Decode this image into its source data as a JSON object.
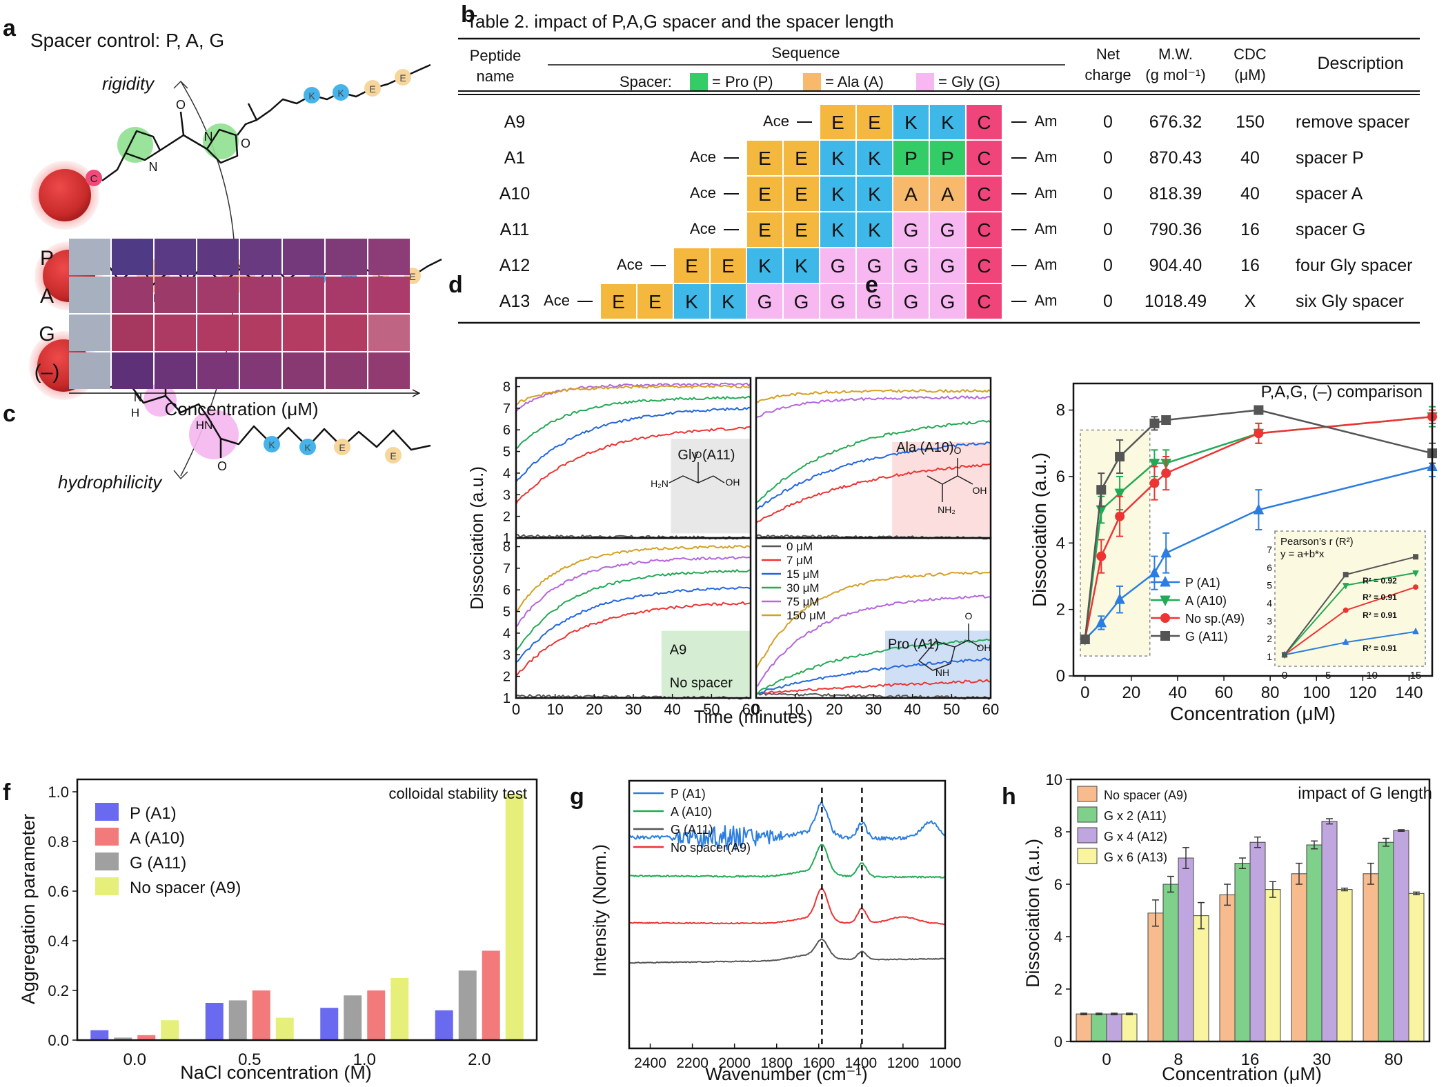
{
  "figure": {
    "panel_labels": {
      "a": "a",
      "b": "b",
      "c": "c",
      "d": "d",
      "e": "e",
      "f": "f",
      "g": "g",
      "h": "h"
    },
    "panel_a": {
      "title": "Spacer control: P, A, G",
      "arrow_top_label": "rigidity",
      "arrow_bottom_label": "hydrophilicity",
      "gold_label": "C",
      "lysine_label": "K",
      "glutamate_label": "E",
      "nh_label": "N",
      "h_label": "H",
      "o_label": "O",
      "colors": {
        "particle": "#d83a3a",
        "pro": "#8fe08f",
        "ala": "#f6c79a",
        "gly": "#f5b6f0",
        "lys": "#46b4ea",
        "glu": "#f6d69a"
      }
    },
    "panel_b": {
      "title": "Table 2. impact of P,A,G spacer and the spacer length",
      "headers": {
        "peptide": [
          "Peptide",
          "name"
        ],
        "sequence": "Sequence",
        "net": [
          "Net",
          "charge"
        ],
        "mw": [
          "M.W.",
          "(g mol⁻¹)"
        ],
        "cdc": [
          "CDC",
          "(μM)"
        ],
        "description": "Description"
      },
      "spacer_legend": {
        "label": "Spacer:",
        "items": [
          {
            "text": "= Pro (P)",
            "color": "#33cc66"
          },
          {
            "text": "= Ala (A)",
            "color": "#f7b96b"
          },
          {
            "text": "= Gly (G)",
            "color": "#f7b8f2"
          }
        ]
      },
      "ace": "Ace",
      "am": "Am",
      "residue_colors": {
        "E": "#f5b83f",
        "K": "#3db8e8",
        "P": "#33cc66",
        "A": "#f7b96b",
        "G": "#f7b8f2",
        "C": "#f0457a"
      },
      "rows": [
        {
          "name": "A9",
          "sequence": [
            "E",
            "E",
            "K",
            "K",
            "C"
          ],
          "net": "0",
          "mw": "676.32",
          "cdc": "150",
          "description": "remove spacer"
        },
        {
          "name": "A1",
          "sequence": [
            "E",
            "E",
            "K",
            "K",
            "P",
            "P",
            "C"
          ],
          "net": "0",
          "mw": "870.43",
          "cdc": "40",
          "description": "spacer P"
        },
        {
          "name": "A10",
          "sequence": [
            "E",
            "E",
            "K",
            "K",
            "A",
            "A",
            "C"
          ],
          "net": "0",
          "mw": "818.39",
          "cdc": "40",
          "description": "spacer A"
        },
        {
          "name": "A11",
          "sequence": [
            "E",
            "E",
            "K",
            "K",
            "G",
            "G",
            "C"
          ],
          "net": "0",
          "mw": "790.36",
          "cdc": "16",
          "description": "spacer G"
        },
        {
          "name": "A12",
          "sequence": [
            "E",
            "E",
            "K",
            "K",
            "G",
            "G",
            "G",
            "G",
            "C"
          ],
          "net": "0",
          "mw": "904.40",
          "cdc": "16",
          "description": "four Gly spacer"
        },
        {
          "name": "A13",
          "sequence": [
            "E",
            "E",
            "K",
            "K",
            "G",
            "G",
            "G",
            "G",
            "G",
            "G",
            "C"
          ],
          "net": "0",
          "mw": "1018.49",
          "cdc": "X",
          "description": "six Gly spacer"
        }
      ]
    },
    "panel_c": {
      "row_labels": [
        "P",
        "A",
        "G",
        "(–)"
      ],
      "xlabel": "Concentration (μM)",
      "well_colors": [
        [
          "#a9b1c0",
          "#4f3a86",
          "#5a3a85",
          "#5e3982",
          "#6a3a80",
          "#73397a",
          "#7f3a78",
          "#8c3c76"
        ],
        [
          "#a7b0bf",
          "#9a3a6c",
          "#9c3a6a",
          "#a23a6a",
          "#a43a6a",
          "#a53a6a",
          "#a83a6a",
          "#ab3b6a"
        ],
        [
          "#a8b0bf",
          "#a6375e",
          "#ac3a62",
          "#b03a62",
          "#b23b62",
          "#b43c62",
          "#b23c62",
          "#c06484"
        ],
        [
          "#a5adbd",
          "#5d3078",
          "#6b3478",
          "#7a3676",
          "#813874",
          "#883972",
          "#8d3a70",
          "#913b70"
        ]
      ]
    },
    "chart_data": [
      {
        "id": "d",
        "type": "line",
        "ylabel": "Dissociation (a.u.)",
        "xlabel": "Time (minutes)",
        "xlim": [
          0,
          60
        ],
        "ylim": [
          1,
          8.4
        ],
        "x_ticks": [
          0,
          10,
          20,
          30,
          40,
          50,
          60
        ],
        "y_ticks": [
          1,
          2,
          3,
          4,
          5,
          6,
          7,
          8
        ],
        "legend": [
          "0 μM",
          "7 μM",
          "15 μM",
          "30 μM",
          "75 μM",
          "150 μM"
        ],
        "series_colors": [
          "#555555",
          "#ee3333",
          "#2266dd",
          "#22aa55",
          "#b466dd",
          "#d4a020"
        ],
        "subplots": [
          {
            "label": "Gly (A11)",
            "start": [
              1.1,
              2.6,
              3.6,
              5.1,
              6.9,
              7.2
            ],
            "end": [
              1.0,
              6.1,
              7.0,
              7.5,
              8.1,
              8.0
            ],
            "k": [
              0,
              0.055,
              0.06,
              0.08,
              0.12,
              0.12
            ]
          },
          {
            "label": "Ala (A10)",
            "start": [
              1.1,
              1.7,
              2.3,
              2.6,
              6.6,
              7.3
            ],
            "end": [
              1.0,
              4.4,
              5.4,
              6.4,
              7.5,
              7.8
            ],
            "k": [
              0,
              0.035,
              0.04,
              0.045,
              0.09,
              0.12
            ]
          },
          {
            "label": "A9",
            "label2": "No spacer",
            "start": [
              1.1,
              2.0,
              2.6,
              3.2,
              4.3,
              5.0
            ],
            "end": [
              1.0,
              5.4,
              6.1,
              6.9,
              7.5,
              8.0
            ],
            "k": [
              0,
              0.06,
              0.065,
              0.07,
              0.08,
              0.09
            ]
          },
          {
            "label": "Pro (A1)",
            "start": [
              1.2,
              1.2,
              1.2,
              1.2,
              1.5,
              2.3
            ],
            "end": [
              1.0,
              1.8,
              2.8,
              3.7,
              5.7,
              6.8
            ],
            "k": [
              0,
              0.006,
              0.012,
              0.018,
              0.03,
              0.035
            ]
          }
        ]
      },
      {
        "id": "e",
        "type": "line",
        "title": "P,A,G, (–) comparison",
        "xlabel": "Concentration (μM)",
        "ylabel": "Dissociation (a.u.)",
        "xlim": [
          -5,
          150
        ],
        "ylim": [
          0,
          8.8
        ],
        "x_ticks": [
          0,
          20,
          40,
          60,
          80,
          100,
          120,
          140
        ],
        "y_ticks": [
          0,
          2,
          4,
          6,
          8
        ],
        "x": [
          0,
          7,
          15,
          30,
          35,
          75,
          150
        ],
        "series": [
          {
            "name": "P (A1)",
            "color": "#2b7de0",
            "marker": "triangle-up",
            "values": [
              1.1,
              1.6,
              2.3,
              3.1,
              3.7,
              5.0,
              6.3
            ],
            "err": [
              0.1,
              0.2,
              0.4,
              0.5,
              0.6,
              0.6,
              0.3
            ]
          },
          {
            "name": "A (A10)",
            "color": "#22aa55",
            "marker": "triangle-down",
            "values": [
              1.1,
              5.0,
              5.5,
              6.4,
              6.4,
              7.3,
              7.8
            ],
            "err": [
              0.1,
              0.4,
              0.5,
              0.4,
              0.4,
              0.3,
              0.3
            ]
          },
          {
            "name": "No sp.(A9)",
            "color": "#ee3333",
            "marker": "circle",
            "values": [
              1.1,
              3.6,
              4.8,
              5.8,
              6.1,
              7.3,
              7.8
            ],
            "err": [
              0.1,
              0.5,
              0.6,
              0.5,
              0.5,
              0.3,
              0.2
            ]
          },
          {
            "name": "G (A11)",
            "color": "#555555",
            "marker": "square",
            "values": [
              1.1,
              5.6,
              6.6,
              7.6,
              7.7,
              8.0,
              6.7
            ],
            "err": [
              0.1,
              0.5,
              0.5,
              0.2,
              0.1,
              0.1,
              0.3
            ]
          }
        ],
        "inset": {
          "title": "Pearson’s r (R²)",
          "equation": "y = a+b*x",
          "x_ticks": [
            0,
            5,
            10,
            15
          ],
          "y_ticks": [
            1,
            2,
            3,
            4,
            5,
            6,
            7
          ],
          "r2": [
            "R² = 0.92",
            "R² = 0.91",
            "R² = 0.91",
            "R² = 0.91"
          ]
        }
      },
      {
        "id": "f",
        "type": "bar",
        "title": "colloidal stability test",
        "xlabel": "NaCl concentration (M)",
        "ylabel": "Aggregation parameter",
        "categories": [
          "0.0",
          "0.5",
          "1.0",
          "2.0"
        ],
        "ylim": [
          0,
          1.05
        ],
        "y_ticks": [
          "0.0",
          "0.2",
          "0.4",
          "0.6",
          "0.8",
          "1.0"
        ],
        "series": [
          {
            "name": "P (A1)",
            "color": "#6a6af0",
            "values": [
              0.04,
              0.15,
              0.13,
              0.12
            ]
          },
          {
            "name": "A (A10)",
            "color": "#f27a7a",
            "values": [
              0.02,
              0.2,
              0.2,
              0.36
            ]
          },
          {
            "name": "G (A11)",
            "color": "#a0a0a0",
            "values": [
              0.01,
              0.16,
              0.18,
              0.28
            ]
          },
          {
            "name": "No spacer (A9)",
            "color": "#e5ef7a",
            "values": [
              0.08,
              0.09,
              0.25,
              0.99
            ]
          }
        ],
        "bar_order": [
          [
            0,
            2,
            1,
            3
          ],
          [
            0,
            2,
            1,
            3
          ],
          [
            0,
            2,
            1,
            3
          ],
          [
            0,
            2,
            1,
            3
          ]
        ]
      },
      {
        "id": "g",
        "type": "line",
        "xlabel": "Wavenumber (cm⁻¹)",
        "ylabel": "Intensity (Norm.)",
        "xlim": [
          2500,
          1000
        ],
        "x_ticks": [
          "2400",
          "2200",
          "2000",
          "1800",
          "1600",
          "1400",
          "1200",
          "1000"
        ],
        "dashed_lines_at": [
          1585,
          1395
        ],
        "series": [
          {
            "name": "P (A1)",
            "color": "#2b7de0"
          },
          {
            "name": "A (A10)",
            "color": "#22aa55"
          },
          {
            "name": "G (A11)",
            "color": "#555555"
          },
          {
            "name": "No spacer(A9)",
            "color": "#ee3333"
          }
        ]
      },
      {
        "id": "h",
        "type": "bar",
        "title": "impact of G length",
        "xlabel": "Concentration (μM)",
        "ylabel": "Dissociation (a.u.)",
        "categories": [
          "0",
          "8",
          "16",
          "30",
          "80"
        ],
        "ylim": [
          0,
          10
        ],
        "y_ticks": [
          0,
          2,
          4,
          6,
          8,
          10
        ],
        "series": [
          {
            "name": "No spacer (A9)",
            "color": "#f8bb8e",
            "values": [
              1.05,
              4.9,
              5.6,
              6.4,
              6.4
            ],
            "err": [
              0.03,
              0.5,
              0.4,
              0.4,
              0.4
            ]
          },
          {
            "name": "G x 2 (A11)",
            "color": "#7ed08a",
            "values": [
              1.05,
              6.0,
              6.8,
              7.5,
              7.6
            ],
            "err": [
              0.03,
              0.3,
              0.2,
              0.15,
              0.15
            ]
          },
          {
            "name": "G x 4 (A12)",
            "color": "#c0a6df",
            "values": [
              1.05,
              7.0,
              7.6,
              8.4,
              8.05
            ],
            "err": [
              0.03,
              0.4,
              0.2,
              0.1,
              0.03
            ]
          },
          {
            "name": "G x 6 (A13)",
            "color": "#f8f4a0",
            "values": [
              1.05,
              4.8,
              5.8,
              5.8,
              5.65
            ],
            "err": [
              0.03,
              0.5,
              0.3,
              0.05,
              0.05
            ]
          }
        ]
      }
    ]
  }
}
